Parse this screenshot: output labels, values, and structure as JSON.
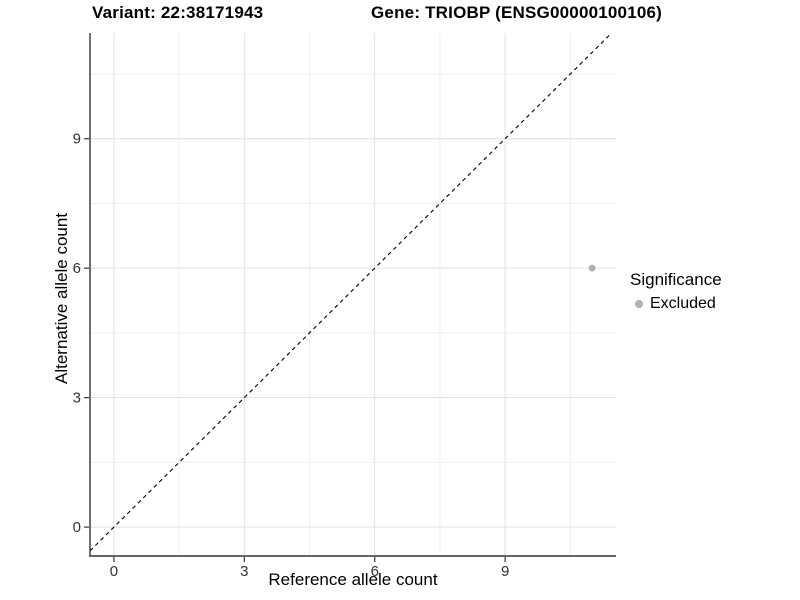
{
  "chart_data": {
    "type": "scatter",
    "title_left": "Variant: 22:38171943",
    "title_right": "Gene: TRIOBP (ENSG00000100106)",
    "xlabel": "Reference allele count",
    "ylabel": "Alternative allele count",
    "xlim": [
      -0.55,
      11.55
    ],
    "ylim": [
      -0.67,
      11.45
    ],
    "x_ticks": [
      0,
      3,
      6,
      9
    ],
    "y_ticks": [
      0,
      3,
      6,
      9
    ],
    "x_minor_ticks": [
      1.5,
      4.5,
      7.5,
      10.5
    ],
    "y_minor_ticks": [
      1.5,
      4.5,
      7.5,
      10.5
    ],
    "grid": true,
    "points": [
      {
        "x": 11,
        "y": 6,
        "significance": "Excluded"
      }
    ],
    "reference_line": {
      "slope": 1,
      "intercept": 0,
      "style": "dashed",
      "color": "#000000"
    },
    "legend": {
      "title": "Significance",
      "position": "right",
      "entries": [
        {
          "label": "Excluded",
          "color": "#b0b0b0"
        }
      ]
    },
    "colors": {
      "point": "#b0b0b0",
      "grid_major": "#e0e0e0",
      "grid_minor": "#efefef",
      "axis_line": "#333333",
      "tick": "#333333",
      "tick_label": "#333333",
      "background": "#ffffff"
    }
  }
}
